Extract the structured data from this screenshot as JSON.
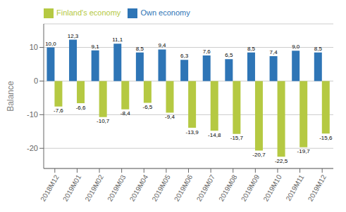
{
  "chart_data": {
    "type": "bar",
    "ylabel": "Balance",
    "categories": [
      "2018M12",
      "2019M01",
      "2019M02",
      "2019M03",
      "2019M04",
      "2019M05",
      "2019M06",
      "2019M07",
      "2019M08",
      "2019M09",
      "2019M10",
      "2019M11",
      "2019M12"
    ],
    "series": [
      {
        "name": "Own economy",
        "color": "#2E75B6",
        "values": [
          10.0,
          12.3,
          9.1,
          11.1,
          8.5,
          9.4,
          6.3,
          7.6,
          6.5,
          8.5,
          7.4,
          9.0,
          8.5
        ],
        "value_labels": [
          "10,0",
          "12,3",
          "9,1",
          "11,1",
          "8,5",
          "9,4",
          "6,3",
          "7,6",
          "6,5",
          "8,5",
          "7,4",
          "9,0",
          "8,5"
        ]
      },
      {
        "name": "Finland's economy",
        "color": "#B5C942",
        "values": [
          -7.6,
          -6.6,
          -10.7,
          -8.4,
          -6.5,
          -9.4,
          -13.9,
          -14.8,
          -15.7,
          -20.7,
          -22.5,
          -19.7,
          -15.6
        ],
        "value_labels": [
          "-7,6",
          "-6,6",
          "-10,7",
          "-8,4",
          "-6,5",
          "-9,4",
          "-13,9",
          "-14,8",
          "-15,7",
          "-20,7",
          "-22,5",
          "-19,7",
          "-15,6"
        ]
      }
    ],
    "ylim": [
      -26,
      17
    ],
    "yticks": [
      -20,
      -10,
      0,
      10
    ],
    "grid": true,
    "legend": "upper left",
    "data_labels": true
  }
}
